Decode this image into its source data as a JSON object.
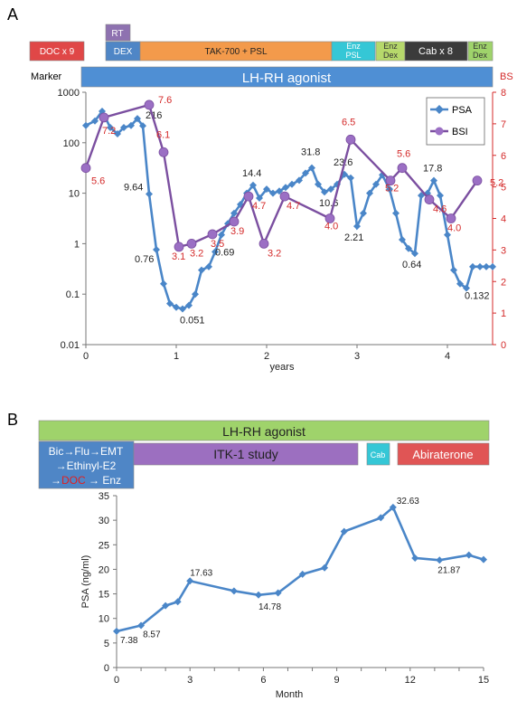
{
  "panelA": {
    "letter": "A",
    "marker_label": "Marker",
    "right_axis_label": "BS",
    "top_bars": [
      {
        "key": "rt",
        "label": "RT",
        "color": "#8e72b0",
        "text": "#ffffff"
      },
      {
        "key": "doc",
        "label": "DOC x 9",
        "color": "#e04747",
        "text": "#ffffff"
      },
      {
        "key": "dex",
        "label": "DEX",
        "color": "#4f86c6",
        "text": "#ffffff"
      },
      {
        "key": "tak",
        "label": "TAK-700 + PSL",
        "color": "#f39a4b",
        "text": "#222222"
      },
      {
        "key": "enz1",
        "label": "Enz\nPSL",
        "color": "#35c7d6",
        "text": "#ffffff"
      },
      {
        "key": "enz2",
        "label": "Enz\nDex",
        "color": "#b6d86b",
        "text": "#333333"
      },
      {
        "key": "cab",
        "label": "Cab x 8",
        "color": "#3b3b3b",
        "text": "#ffffff"
      },
      {
        "key": "enz3",
        "label": "Enz\nDex",
        "color": "#9fd36b",
        "text": "#333333"
      }
    ],
    "lhrh_label": "LH-RH agonist",
    "lhrh_color": "#4f8fd4",
    "legend": [
      {
        "name": "PSA",
        "color": "#4a86c8"
      },
      {
        "name": "BSI",
        "color": "#7b4fa0"
      }
    ]
  },
  "panelB": {
    "letter": "B",
    "lhrh_label": "LH-RH agonist",
    "lhrh_color": "#9fd36b",
    "prior_lines": [
      "Bic→Flu→EMT",
      "→Ethinyl-E2",
      "→DOC → Enz"
    ],
    "prior_color": "#4f86c6",
    "prior_highlight": "DOC",
    "highlight_color": "#e02020",
    "itk_label": "ITK-1 study",
    "itk_color": "#9c6fc0",
    "cab_label": "Cab",
    "cab_color": "#35c7d6",
    "abi_label": "Abiraterone",
    "abi_color": "#e05555"
  },
  "chart_data": [
    {
      "type": "line",
      "xlabel": "years",
      "ylabel": "",
      "y2label": "BS",
      "xlim": [
        0,
        4.5
      ],
      "ylim": [
        0.01,
        1000
      ],
      "y2lim": [
        0,
        8
      ],
      "xticks": [
        0,
        1,
        2,
        3,
        4
      ],
      "yticks": [
        "0.01",
        "0.1",
        "1",
        "10",
        "100",
        "1000"
      ],
      "y2ticks": [
        0,
        1,
        2,
        3,
        4,
        5,
        6,
        7,
        8
      ],
      "y_scale": "log",
      "legend_position": "top-right",
      "series": [
        {
          "name": "PSA",
          "x": [
            0.0,
            0.1,
            0.18,
            0.27,
            0.35,
            0.42,
            0.5,
            0.57,
            0.63,
            0.7,
            0.78,
            0.86,
            0.93,
            1.0,
            1.07,
            1.14,
            1.21,
            1.28,
            1.36,
            1.43,
            1.5,
            1.57,
            1.64,
            1.71,
            1.78,
            1.85,
            1.92,
            2.0,
            2.07,
            2.14,
            2.21,
            2.28,
            2.36,
            2.43,
            2.5,
            2.57,
            2.64,
            2.71,
            2.78,
            2.86,
            2.93,
            3.0,
            3.07,
            3.14,
            3.21,
            3.28,
            3.36,
            3.43,
            3.5,
            3.57,
            3.64,
            3.71,
            3.78,
            3.85,
            3.92,
            4.0,
            4.07,
            4.14,
            4.21,
            4.28,
            4.36,
            4.43,
            4.5
          ],
          "values": [
            220,
            270,
            420,
            200,
            150,
            200,
            220,
            300,
            216,
            9.64,
            0.76,
            0.16,
            0.065,
            0.055,
            0.051,
            0.06,
            0.1,
            0.3,
            0.35,
            0.69,
            1.5,
            2.5,
            4,
            6,
            10,
            14.4,
            8,
            12,
            10,
            11,
            13,
            15,
            18,
            25,
            31.8,
            15,
            10.6,
            12,
            15,
            23.6,
            20,
            2.21,
            4,
            10,
            15,
            23.0,
            12,
            4,
            1.2,
            0.8,
            0.64,
            9,
            10,
            17.8,
            9,
            1.5,
            0.3,
            0.16,
            0.132,
            0.35,
            0.35,
            0.35,
            0.35
          ],
          "labels": {
            "216": "216",
            "9.64": "9.64",
            "0.76": "0.76",
            "0.051": "0.051",
            "0.69": "0.69",
            "14.4": "14.4",
            "31.8": "31.8",
            "10.6": "10.6",
            "23.6": "23.6",
            "2.21": "2.21",
            "23.0": "23.0",
            "0.64": "0.64",
            "17.8": "17.8",
            "0.132": "0.132"
          }
        },
        {
          "name": "BSI",
          "x": [
            0.0,
            0.2,
            0.7,
            0.86,
            1.03,
            1.17,
            1.4,
            1.64,
            1.8,
            1.97,
            2.2,
            2.7,
            2.93,
            3.37,
            3.5,
            3.8,
            4.04,
            4.33
          ],
          "values": [
            5.6,
            7.2,
            7.6,
            6.1,
            3.1,
            3.2,
            3.5,
            3.9,
            4.7,
            3.2,
            4.7,
            4.0,
            6.5,
            5.2,
            5.6,
            4.6,
            4.0,
            5.2
          ],
          "value_labels": [
            "5.6",
            "7.2",
            "7.6",
            "6.1",
            "3.1",
            "3.2",
            "3.5",
            "3.9",
            "4.7",
            "3.2",
            "4.7",
            "4.0",
            "6.5",
            "5.2",
            "5.6",
            "4.6",
            "4.0",
            "5.2"
          ]
        }
      ]
    },
    {
      "type": "line",
      "xlabel": "Month",
      "ylabel": "PSA (ng/ml)",
      "xlim": [
        0,
        15
      ],
      "ylim": [
        0,
        35
      ],
      "xticks": [
        0,
        3,
        6,
        9,
        12,
        15
      ],
      "yticks": [
        0,
        5,
        10,
        15,
        20,
        25,
        30,
        35
      ],
      "series": [
        {
          "name": "",
          "x": [
            0,
            1,
            2,
            2.5,
            3,
            4.8,
            5.8,
            6.6,
            7.6,
            8.5,
            9.3,
            10.8,
            11.3,
            12.2,
            13.2,
            14.4,
            15
          ],
          "values": [
            7.38,
            8.57,
            12.6,
            13.4,
            17.63,
            15.6,
            14.78,
            15.2,
            19.0,
            20.3,
            27.7,
            30.5,
            32.63,
            22.3,
            21.87,
            22.9,
            22.0
          ],
          "labels": [
            "7.38",
            "8.57",
            "",
            "",
            "17.63",
            "",
            "14.78",
            "",
            "",
            "",
            "",
            "",
            "32.63",
            "",
            "21.87",
            "",
            ""
          ]
        }
      ]
    }
  ]
}
